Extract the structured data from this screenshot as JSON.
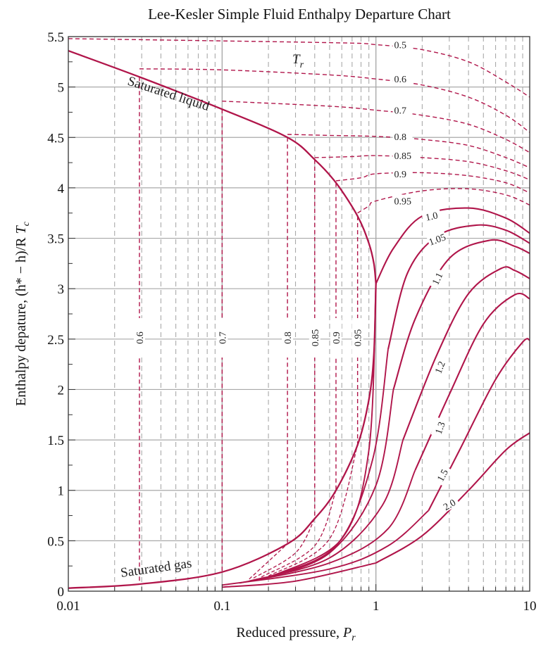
{
  "chart_data": {
    "type": "line",
    "title": "Lee-Kesler Simple Fluid Enthalpy Departure Chart",
    "xlabel": "Reduced pressure,",
    "xlabel_var": "P",
    "xlabel_sub": "r",
    "ylabel": "Enthalpy depature, (h* − h)/R",
    "ylabel_var": "T",
    "ylabel_sub": "c",
    "x_scale": "log",
    "xlim": [
      0.01,
      10
    ],
    "ylim": [
      0,
      5.5
    ],
    "x_ticks": [
      "0.01",
      "0.1",
      "1",
      "10"
    ],
    "y_ticks": [
      "0",
      "0.5",
      "1",
      "1.5",
      "2",
      "2.5",
      "3",
      "3.5",
      "4",
      "4.5",
      "5",
      "5.5"
    ],
    "grid": true,
    "colors": {
      "curve": "#b0154a",
      "grid": "#a9a9a9",
      "axis": "#333333"
    },
    "annotations": {
      "tr_symbol": "T",
      "tr_sub": "r",
      "saturated_liquid": "Saturated liquid",
      "saturated_gas": "Saturated gas"
    },
    "saturation_dome": {
      "liquid_branch": [
        [
          0.01,
          5.36
        ],
        [
          0.029,
          5.1
        ],
        [
          0.1,
          4.78
        ],
        [
          0.266,
          4.5
        ],
        [
          0.4,
          4.28
        ],
        [
          0.55,
          4.05
        ],
        [
          0.76,
          3.72
        ],
        [
          0.9,
          3.45
        ],
        [
          0.97,
          3.25
        ],
        [
          1.0,
          3.05
        ]
      ],
      "gas_branch": [
        [
          0.01,
          0.03
        ],
        [
          0.029,
          0.07
        ],
        [
          0.1,
          0.19
        ],
        [
          0.266,
          0.47
        ],
        [
          0.4,
          0.72
        ],
        [
          0.55,
          1.0
        ],
        [
          0.76,
          1.45
        ],
        [
          0.9,
          1.9
        ],
        [
          0.97,
          2.35
        ],
        [
          1.0,
          3.05
        ]
      ]
    },
    "series": [
      {
        "name": "0.5",
        "style": "dashed",
        "label_pos": "right",
        "points": [
          [
            0.01,
            5.48
          ],
          [
            0.5,
            5.44
          ],
          [
            1.0,
            5.42
          ],
          [
            2,
            5.37
          ],
          [
            4,
            5.25
          ],
          [
            7,
            5.05
          ],
          [
            10,
            4.9
          ]
        ]
      },
      {
        "name": "0.6",
        "style": "dashed",
        "label_pos": "right",
        "points": [
          [
            0.029,
            5.18
          ],
          [
            0.1,
            5.17
          ],
          [
            0.5,
            5.12
          ],
          [
            1.0,
            5.08
          ],
          [
            2,
            5.02
          ],
          [
            4,
            4.9
          ],
          [
            7,
            4.72
          ],
          [
            10,
            4.55
          ]
        ]
      },
      {
        "name": "0.7",
        "style": "dashed",
        "label_pos": "right",
        "points": [
          [
            0.1,
            4.86
          ],
          [
            0.5,
            4.81
          ],
          [
            1.0,
            4.77
          ],
          [
            2,
            4.72
          ],
          [
            4,
            4.63
          ],
          [
            7,
            4.48
          ],
          [
            10,
            4.35
          ]
        ]
      },
      {
        "name": "0.8",
        "style": "dashed",
        "label_pos": "right",
        "points": [
          [
            0.266,
            4.53
          ],
          [
            0.5,
            4.52
          ],
          [
            1.0,
            4.51
          ],
          [
            2,
            4.48
          ],
          [
            4,
            4.42
          ],
          [
            7,
            4.3
          ],
          [
            10,
            4.2
          ]
        ]
      },
      {
        "name": "0.85",
        "style": "dashed",
        "label_pos": "right",
        "points": [
          [
            0.4,
            4.3
          ],
          [
            0.7,
            4.31
          ],
          [
            1.0,
            4.32
          ],
          [
            2,
            4.3
          ],
          [
            4,
            4.26
          ],
          [
            7,
            4.17
          ],
          [
            10,
            4.08
          ]
        ]
      },
      {
        "name": "0.9",
        "style": "dashed",
        "label_pos": "right",
        "points": [
          [
            0.55,
            4.07
          ],
          [
            0.8,
            4.1
          ],
          [
            1.0,
            4.14
          ],
          [
            2,
            4.15
          ],
          [
            4,
            4.12
          ],
          [
            7,
            4.05
          ],
          [
            10,
            3.95
          ]
        ]
      },
      {
        "name": "0.95",
        "style": "dashed",
        "label_pos": "right",
        "points": [
          [
            0.76,
            3.75
          ],
          [
            0.9,
            3.82
          ],
          [
            1.0,
            3.87
          ],
          [
            2,
            3.97
          ],
          [
            4,
            3.99
          ],
          [
            7,
            3.93
          ],
          [
            10,
            3.83
          ]
        ]
      },
      {
        "name": "1.0",
        "style": "solid",
        "label_pos": "on",
        "points": [
          [
            1.0,
            3.05
          ],
          [
            1.3,
            3.4
          ],
          [
            2,
            3.72
          ],
          [
            4,
            3.8
          ],
          [
            7,
            3.7
          ],
          [
            10,
            3.55
          ]
        ]
      },
      {
        "name": "1.05",
        "style": "solid",
        "label_pos": "on",
        "points": [
          [
            1.2,
            2.4
          ],
          [
            1.6,
            3.15
          ],
          [
            2.5,
            3.52
          ],
          [
            4.5,
            3.63
          ],
          [
            7,
            3.58
          ],
          [
            10,
            3.45
          ]
        ]
      },
      {
        "name": "1.1",
        "style": "solid",
        "label_pos": "on",
        "points": [
          [
            1.3,
            2.0
          ],
          [
            1.8,
            2.7
          ],
          [
            3,
            3.3
          ],
          [
            5.5,
            3.48
          ],
          [
            8,
            3.42
          ],
          [
            10,
            3.35
          ]
        ]
      },
      {
        "name": "1.2",
        "style": "solid",
        "label_pos": "on",
        "points": [
          [
            1.5,
            1.5
          ],
          [
            2.5,
            2.35
          ],
          [
            4,
            2.95
          ],
          [
            6.5,
            3.2
          ],
          [
            8,
            3.18
          ],
          [
            10,
            3.1
          ]
        ]
      },
      {
        "name": "1.3",
        "style": "solid",
        "label_pos": "on",
        "points": [
          [
            1.8,
            1.2
          ],
          [
            3,
            1.95
          ],
          [
            5,
            2.65
          ],
          [
            8,
            2.94
          ],
          [
            10,
            2.9
          ]
        ]
      },
      {
        "name": "1.5",
        "style": "solid",
        "label_pos": "on",
        "points": [
          [
            2.2,
            0.8
          ],
          [
            3.5,
            1.4
          ],
          [
            6,
            2.1
          ],
          [
            9,
            2.47
          ],
          [
            10,
            2.49
          ]
        ]
      },
      {
        "name": "2.0",
        "style": "solid",
        "label_pos": "on",
        "points": [
          [
            1.0,
            0.28
          ],
          [
            2,
            0.55
          ],
          [
            4,
            1.0
          ],
          [
            7,
            1.4
          ],
          [
            10,
            1.57
          ]
        ]
      }
    ],
    "low_pressure_curves": [
      {
        "tr": "2.0",
        "points": [
          [
            0.1,
            0.04
          ],
          [
            0.3,
            0.1
          ],
          [
            1.0,
            0.28
          ]
        ]
      },
      {
        "tr": "1.5",
        "points": [
          [
            0.1,
            0.06
          ],
          [
            0.5,
            0.22
          ],
          [
            1.2,
            0.45
          ],
          [
            2.2,
            0.8
          ]
        ]
      },
      {
        "tr": "1.3",
        "points": [
          [
            0.13,
            0.08
          ],
          [
            0.5,
            0.28
          ],
          [
            1.2,
            0.62
          ],
          [
            1.8,
            1.2
          ]
        ]
      },
      {
        "tr": "1.2",
        "points": [
          [
            0.15,
            0.1
          ],
          [
            0.5,
            0.33
          ],
          [
            1.1,
            0.85
          ],
          [
            1.5,
            1.5
          ]
        ]
      },
      {
        "tr": "1.1",
        "points": [
          [
            0.18,
            0.12
          ],
          [
            0.5,
            0.38
          ],
          [
            1.0,
            1.05
          ],
          [
            1.3,
            2.0
          ]
        ]
      },
      {
        "tr": "1.05",
        "points": [
          [
            0.2,
            0.14
          ],
          [
            0.55,
            0.45
          ],
          [
            0.95,
            1.3
          ],
          [
            1.2,
            2.4
          ]
        ]
      },
      {
        "tr": "1.0",
        "points": [
          [
            0.22,
            0.16
          ],
          [
            0.6,
            0.52
          ],
          [
            0.9,
            1.4
          ],
          [
            1.0,
            3.05
          ]
        ]
      }
    ],
    "gas_region_dashed": [
      {
        "tr": "0.95",
        "points": [
          [
            0.2,
            0.15
          ],
          [
            0.5,
            0.52
          ],
          [
            0.76,
            1.45
          ]
        ]
      },
      {
        "tr": "0.9",
        "points": [
          [
            0.18,
            0.14
          ],
          [
            0.4,
            0.45
          ],
          [
            0.55,
            1.0
          ]
        ]
      },
      {
        "tr": "0.85",
        "points": [
          [
            0.16,
            0.13
          ],
          [
            0.3,
            0.38
          ],
          [
            0.4,
            0.72
          ]
        ]
      },
      {
        "tr": "0.8",
        "points": [
          [
            0.15,
            0.12
          ],
          [
            0.266,
            0.47
          ]
        ]
      }
    ],
    "vertical_dashed": [
      {
        "name": "0.6",
        "x": 0.029,
        "y_top": 5.1,
        "y_bottom": 0.07
      },
      {
        "name": "0.7",
        "x": 0.1,
        "y_top": 4.78,
        "y_bottom": 0.19
      },
      {
        "name": "0.8",
        "x": 0.266,
        "y_top": 4.5,
        "y_bottom": 0.47
      },
      {
        "name": "0.85",
        "x": 0.4,
        "y_top": 4.28,
        "y_bottom": 0.72
      },
      {
        "name": "0.9",
        "x": 0.55,
        "y_top": 4.05,
        "y_bottom": 1.0
      },
      {
        "name": "0.95",
        "x": 0.76,
        "y_top": 3.72,
        "y_bottom": 1.45
      }
    ]
  }
}
